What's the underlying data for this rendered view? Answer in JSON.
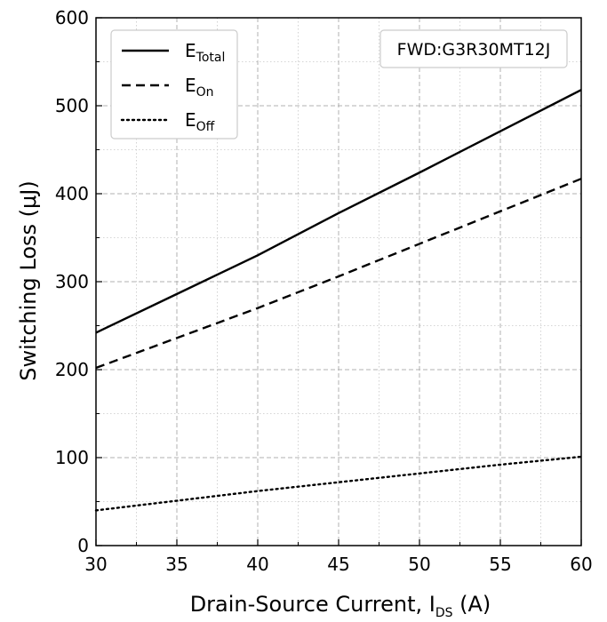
{
  "chart_data": {
    "type": "line",
    "xlabel": {
      "main": "Drain-Source Current, I",
      "sub": "DS",
      "suffix": " (A)"
    },
    "ylabel": "Switching Loss (μJ)",
    "xlim": [
      30,
      60
    ],
    "ylim": [
      0,
      600
    ],
    "x_ticks": [
      30,
      35,
      40,
      45,
      50,
      55,
      60
    ],
    "y_ticks": [
      0,
      100,
      200,
      300,
      400,
      500,
      600
    ],
    "grid": true,
    "legend_position": "top-left",
    "annotation": "FWD:G3R30MT12J",
    "series": [
      {
        "name": "E",
        "sub": "Total",
        "style": "solid",
        "x": [
          30,
          35,
          40,
          45,
          50,
          55,
          60
        ],
        "y": [
          242,
          286,
          330,
          378,
          424,
          471,
          518
        ]
      },
      {
        "name": "E",
        "sub": "On",
        "style": "dashed",
        "x": [
          30,
          35,
          40,
          45,
          50,
          55,
          60
        ],
        "y": [
          202,
          236,
          270,
          306,
          343,
          380,
          417
        ]
      },
      {
        "name": "E",
        "sub": "Off",
        "style": "dotted",
        "x": [
          30,
          35,
          40,
          45,
          50,
          55,
          60
        ],
        "y": [
          40,
          51,
          62,
          72,
          82,
          92,
          101
        ]
      }
    ]
  }
}
